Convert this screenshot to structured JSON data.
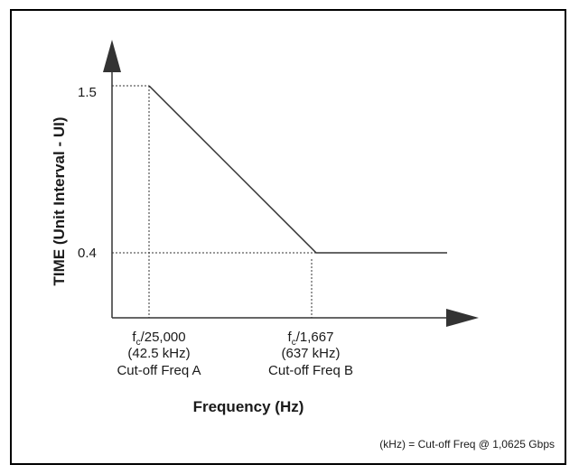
{
  "y_axis": {
    "title": "TIME (Unit Interval - UI)",
    "ticks": [
      "1.5",
      "0.4"
    ]
  },
  "x_axis": {
    "title": "Frequency (Hz)"
  },
  "cutoff_a": {
    "freq_prefix": "f",
    "freq_sub": "c",
    "freq_suffix": "/25,000",
    "khz": "(42.5 kHz)",
    "label": "Cut-off Freq A"
  },
  "cutoff_b": {
    "freq_prefix": "f",
    "freq_sub": "c",
    "freq_suffix": "/1,667",
    "khz": "(637 kHz)",
    "label": "Cut-off Freq B"
  },
  "footnote": "(kHz) = Cut-off Freq @ 1,0625 Gbps"
}
